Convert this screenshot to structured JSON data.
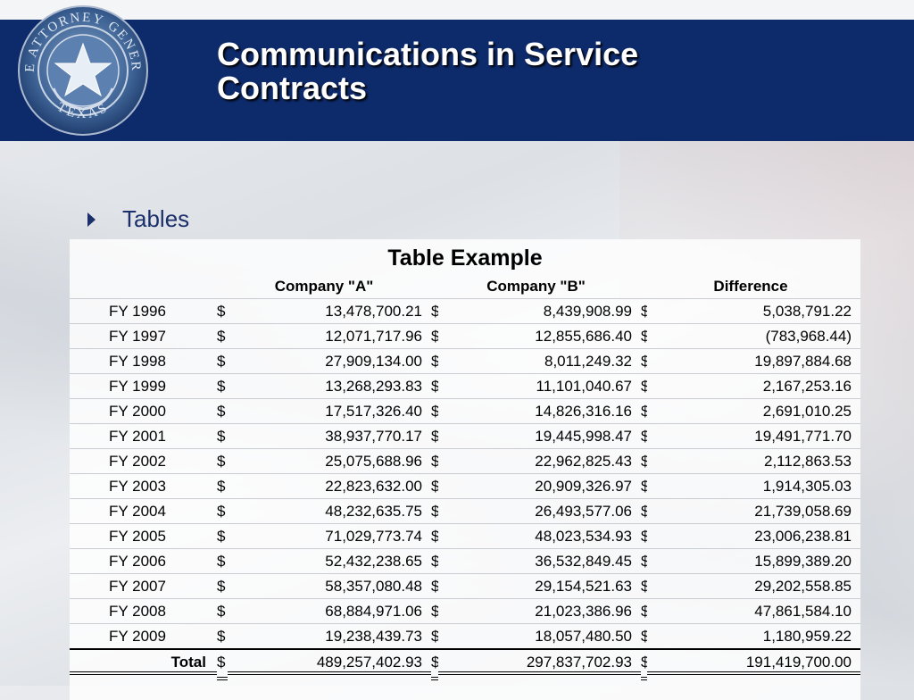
{
  "slide": {
    "title_line1": "Communications in Service",
    "title_line2": "Contracts",
    "seal": {
      "top_text": "THE ATTORNEY GENERAL",
      "bottom_text": "TEXAS"
    },
    "bullet": "Tables"
  },
  "table": {
    "title": "Table Example",
    "columns": [
      "",
      "Company \"A\"",
      "Company \"B\"",
      "Difference"
    ],
    "currency": "$",
    "rows": [
      {
        "label": "FY 1996",
        "a": "13,478,700.21",
        "b": "8,439,908.99",
        "diff": "5,038,791.22"
      },
      {
        "label": "FY 1997",
        "a": "12,071,717.96",
        "b": "12,855,686.40",
        "diff": "(783,968.44)"
      },
      {
        "label": "FY 1998",
        "a": "27,909,134.00",
        "b": "8,011,249.32",
        "diff": "19,897,884.68"
      },
      {
        "label": "FY 1999",
        "a": "13,268,293.83",
        "b": "11,101,040.67",
        "diff": "2,167,253.16"
      },
      {
        "label": "FY 2000",
        "a": "17,517,326.40",
        "b": "14,826,316.16",
        "diff": "2,691,010.25"
      },
      {
        "label": "FY 2001",
        "a": "38,937,770.17",
        "b": "19,445,998.47",
        "diff": "19,491,771.70"
      },
      {
        "label": "FY 2002",
        "a": "25,075,688.96",
        "b": "22,962,825.43",
        "diff": "2,112,863.53"
      },
      {
        "label": "FY 2003",
        "a": "22,823,632.00",
        "b": "20,909,326.97",
        "diff": "1,914,305.03"
      },
      {
        "label": "FY 2004",
        "a": "48,232,635.75",
        "b": "26,493,577.06",
        "diff": "21,739,058.69"
      },
      {
        "label": "FY 2005",
        "a": "71,029,773.74",
        "b": "48,023,534.93",
        "diff": "23,006,238.81"
      },
      {
        "label": "FY 2006",
        "a": "52,432,238.65",
        "b": "36,532,849.45",
        "diff": "15,899,389.20"
      },
      {
        "label": "FY 2007",
        "a": "58,357,080.48",
        "b": "29,154,521.63",
        "diff": "29,202,558.85"
      },
      {
        "label": "FY 2008",
        "a": "68,884,971.06",
        "b": "21,023,386.96",
        "diff": "47,861,584.10"
      },
      {
        "label": "FY 2009",
        "a": "19,238,439.73",
        "b": "18,057,480.50",
        "diff": "1,180,959.22"
      }
    ],
    "total": {
      "label": "Total",
      "a": "489,257,402.93",
      "b": "297,837,702.93",
      "diff": "191,419,700.00"
    }
  },
  "colors": {
    "header_bg": "#0d2a6b",
    "title_text": "#ffffff",
    "bullet_text": "#1b2f6a"
  }
}
